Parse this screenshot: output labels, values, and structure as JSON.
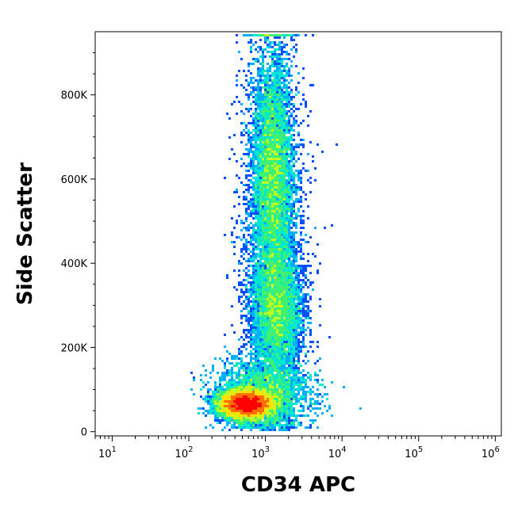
{
  "chart_data": {
    "type": "density-scatter",
    "xlabel": "CD34 APC",
    "ylabel": "Side Scatter",
    "x_scale": "log",
    "xlim": [
      6,
      1200000
    ],
    "ylim": [
      -10000,
      950000
    ],
    "x_ticks": [
      {
        "value": 10,
        "base": "10",
        "exp": "1"
      },
      {
        "value": 100,
        "base": "10",
        "exp": "2"
      },
      {
        "value": 1000,
        "base": "10",
        "exp": "3"
      },
      {
        "value": 10000,
        "base": "10",
        "exp": "4"
      },
      {
        "value": 100000,
        "base": "10",
        "exp": "5"
      },
      {
        "value": 1000000,
        "base": "10",
        "exp": "6"
      }
    ],
    "y_ticks": [
      {
        "value": 0,
        "label": "0"
      },
      {
        "value": 200000,
        "label": "200K"
      },
      {
        "value": 400000,
        "label": "400K"
      },
      {
        "value": 600000,
        "label": "600K"
      },
      {
        "value": 800000,
        "label": "800K"
      }
    ],
    "populations": [
      {
        "x_center": 560,
        "x_spread_decades": 0.17,
        "y_center": 65000,
        "y_spread": 16000,
        "weight": 1.0
      },
      {
        "x_center": 1250,
        "x_spread_decades": 0.13,
        "y_center": 610000,
        "y_spread": 140000,
        "weight": 0.55
      },
      {
        "x_center": 1400,
        "x_spread_decades": 0.16,
        "y_center": 290000,
        "y_spread": 75000,
        "weight": 0.35
      },
      {
        "x_center": 1200,
        "x_spread_decades": 0.22,
        "y_center": 470000,
        "y_spread": 260000,
        "weight": 0.16
      },
      {
        "x_center": 900,
        "x_spread_decades": 0.3,
        "y_center": 90000,
        "y_spread": 40000,
        "weight": 0.3
      }
    ],
    "colormap": [
      "#0000d0",
      "#0050ff",
      "#00b0ff",
      "#00e8d0",
      "#40f070",
      "#c0ff20",
      "#ffe000",
      "#ff7000",
      "#ff0000"
    ]
  }
}
